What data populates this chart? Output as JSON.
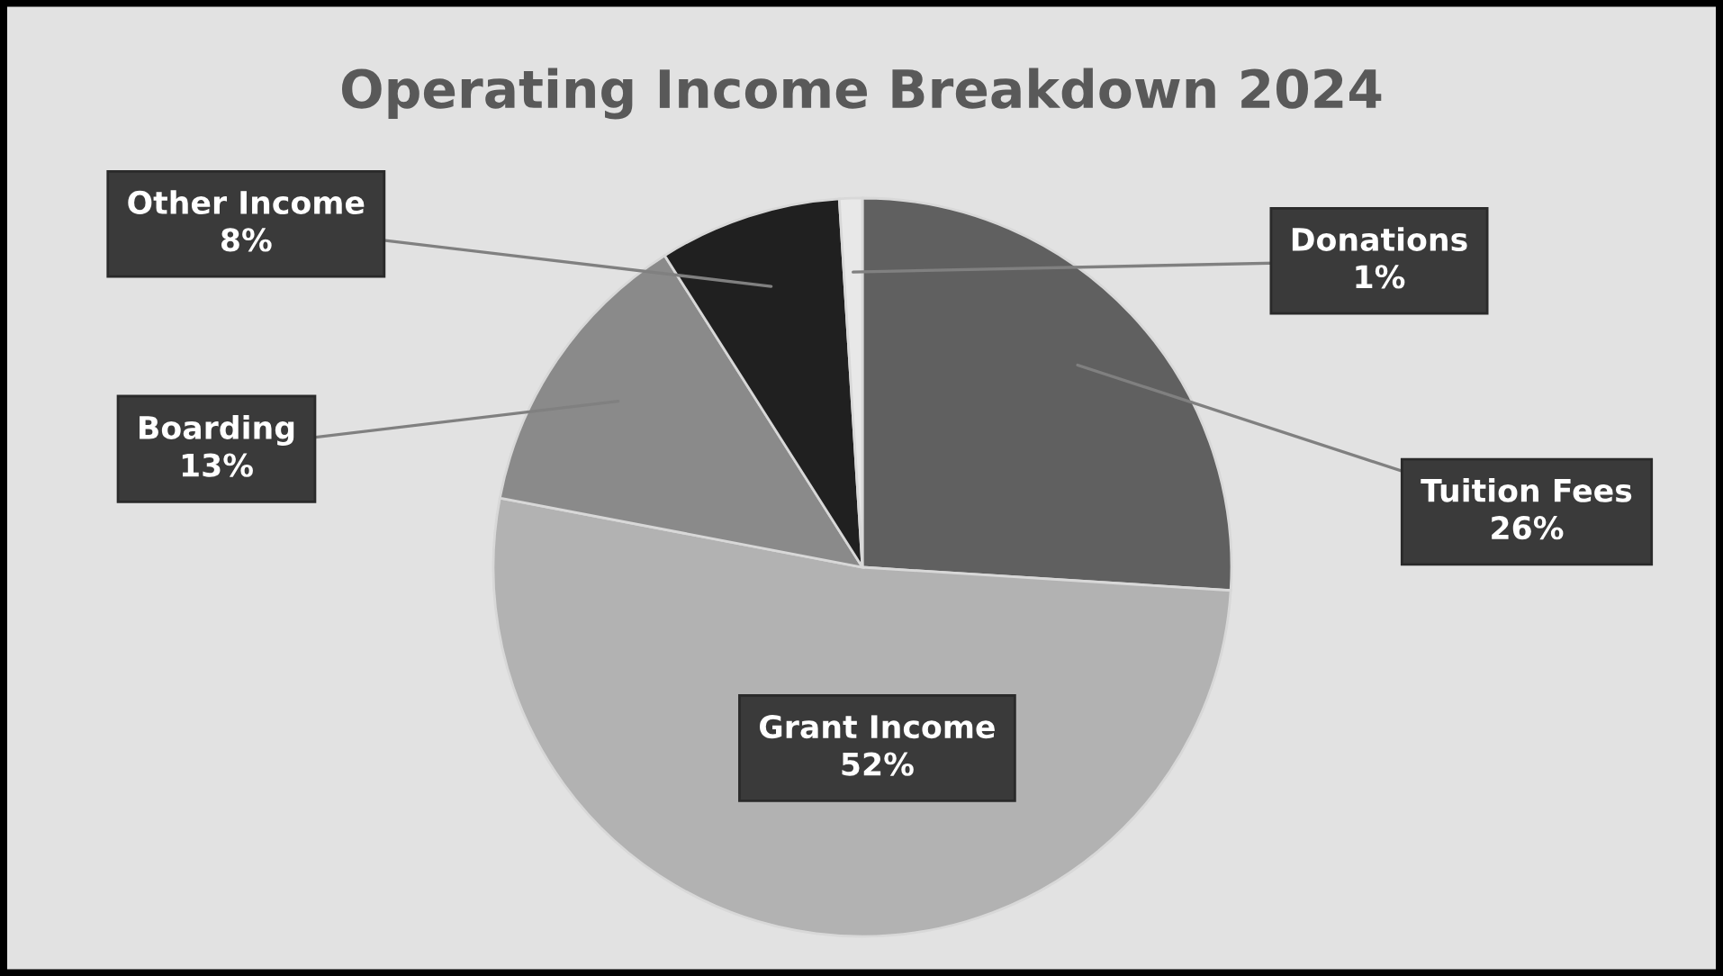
{
  "chart_data": {
    "type": "pie",
    "title": "Operating Income Breakdown 2024",
    "categories": [
      "Tuition Fees",
      "Grant Income",
      "Boarding",
      "Other Income",
      "Donations"
    ],
    "values": [
      26,
      52,
      13,
      8,
      1
    ],
    "colors": [
      "#606060",
      "#b2b2b2",
      "#8a8a8a",
      "#202020",
      "#e8e8e8"
    ],
    "value_labels": [
      "26%",
      "52%",
      "13%",
      "8%",
      "1%"
    ],
    "legend": false
  }
}
